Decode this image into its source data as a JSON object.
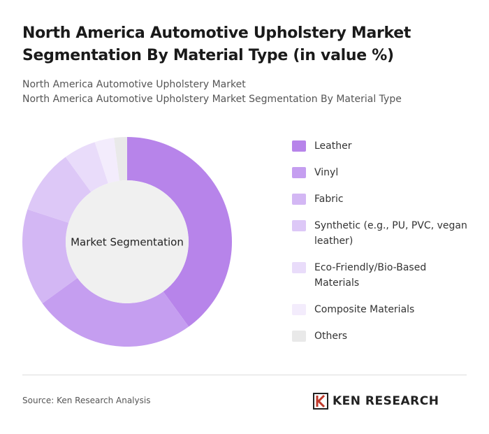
{
  "chart_data": {
    "type": "donut",
    "title": "North America Automotive Upholstery Market Segmentation By Material Type (in value %)",
    "subtitles": [
      "North America Automotive Upholstery Market",
      "North America Automotive Upholstery Market Segmentation By Material Type"
    ],
    "center_label": "Market Segmentation",
    "categories": [
      "Leather",
      "Vinyl",
      "Fabric",
      "Synthetic (e.g., PU, PVC, vegan leather)",
      "Eco-Friendly/Bio-Based Materials",
      "Composite Materials",
      "Others"
    ],
    "values": [
      40,
      25,
      15,
      10,
      5,
      3,
      2
    ],
    "colors": [
      "#b784ea",
      "#c59ef0",
      "#d3b7f4",
      "#ddc8f7",
      "#e9dcfa",
      "#f3ecfc",
      "#e9e9e9"
    ],
    "source": "Source: Ken Research Analysis",
    "logo": "KEN RESEARCH"
  }
}
